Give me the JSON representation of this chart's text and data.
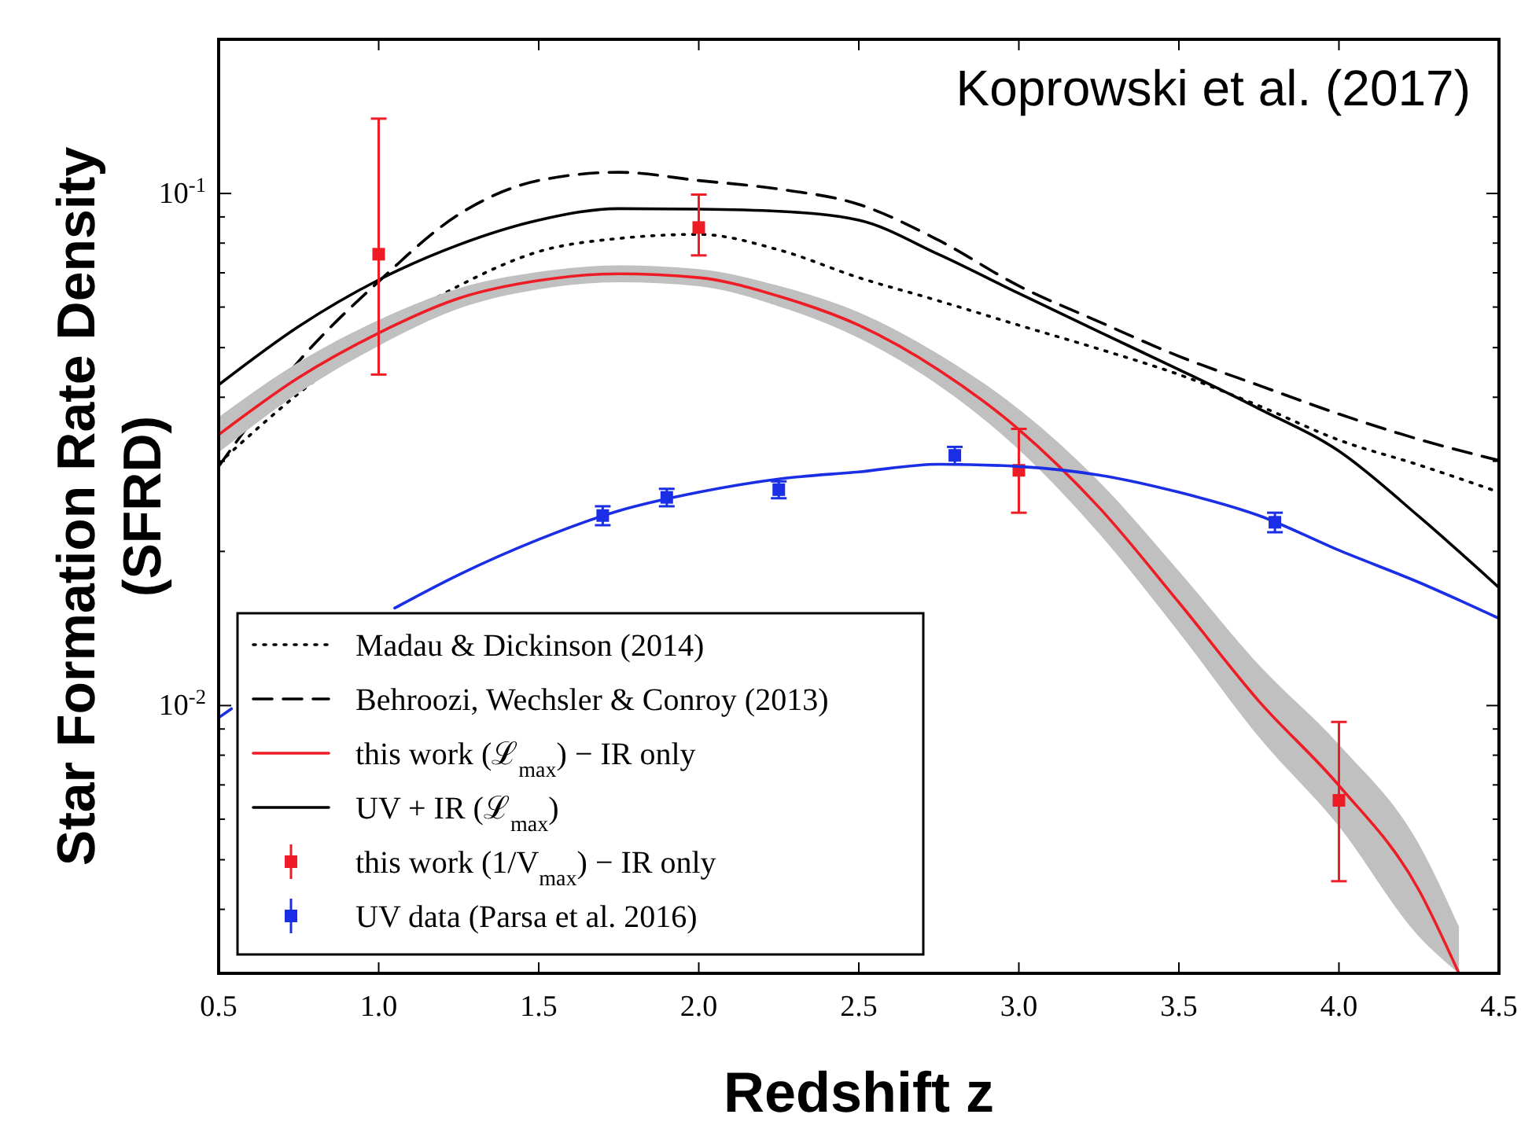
{
  "chart_data": {
    "type": "line",
    "xlabel": "Redshift z",
    "ylabel": "Star Formation Rate Density\n(SFRD)",
    "annotations": [
      "Koprowski et al. (2017)"
    ],
    "log": "y",
    "legend": "bottom left",
    "grid": false,
    "xlim": [
      0.5,
      4.5
    ],
    "xticks": [
      {
        "value": 0.5,
        "label": "0.5"
      },
      {
        "value": 1,
        "label": "1.0"
      },
      {
        "value": 1.5,
        "label": "1.5"
      },
      {
        "value": 2,
        "label": "2.0"
      },
      {
        "value": 2.5,
        "label": "2.5"
      },
      {
        "value": 3,
        "label": "3.0"
      },
      {
        "value": 3.5,
        "label": "3.5"
      },
      {
        "value": 4,
        "label": "4.0"
      },
      {
        "value": 4.5,
        "label": "4.5"
      }
    ],
    "ylim": [
      0.003,
      0.2
    ],
    "yticks": [
      {
        "value": 0.003,
        "label": null
      },
      {
        "value": 0.004,
        "label": null
      },
      {
        "value": 0.005,
        "label": null
      },
      {
        "value": 0.006,
        "label": null
      },
      {
        "value": 0.007,
        "label": null
      },
      {
        "value": 0.008,
        "label": null
      },
      {
        "value": 0.009,
        "label": null
      },
      {
        "value": 0.01,
        "label": "10$^{-2}$"
      },
      {
        "value": 0.02,
        "label": null
      },
      {
        "value": 0.03,
        "label": null
      },
      {
        "value": 0.04,
        "label": null
      },
      {
        "value": 0.05,
        "label": null
      },
      {
        "value": 0.06,
        "label": null
      },
      {
        "value": 0.07,
        "label": null
      },
      {
        "value": 0.08,
        "label": null
      },
      {
        "value": 0.09,
        "label": null
      },
      {
        "value": 0.1,
        "label": "10$^{-1}$"
      },
      {
        "value": 0.2,
        "label": null
      }
    ],
    "series": [
      {
        "name": "Madau & Dickinson (2014)",
        "type": "line",
        "line_style": "dotted",
        "color": "#000000",
        "x": [
          0.5,
          0.75,
          1.25,
          1.5,
          1.75,
          2.0,
          2.25,
          2.5,
          2.75,
          3.0,
          3.25,
          3.5,
          3.75,
          4.0,
          4.25,
          4.5
        ],
        "values": [
          0.0297,
          0.0407,
          0.066,
          0.077,
          0.0817,
          0.0832,
          0.0776,
          0.0685,
          0.0617,
          0.0553,
          0.0497,
          0.0443,
          0.0385,
          0.033,
          0.0295,
          0.0261
        ]
      },
      {
        "name": "Behroozi, Wechsler & Conroy (2013)",
        "type": "line",
        "line_style": "dashed",
        "color": "#000000",
        "x": [
          0.5,
          0.75,
          1.0,
          1.25,
          1.5,
          1.75,
          2.0,
          2.25,
          2.5,
          2.75,
          3.0,
          3.25,
          3.5,
          3.75,
          4.0,
          4.25,
          4.5
        ],
        "values": [
          0.0293,
          0.047,
          0.0673,
          0.091,
          0.106,
          0.11,
          0.106,
          0.102,
          0.0952,
          0.081,
          0.066,
          0.0562,
          0.0481,
          0.0422,
          0.0371,
          0.0331,
          0.0301
        ]
      },
      {
        "name": "this work (ℒ$_{max}$) − IR only",
        "type": "line",
        "line_style": "solid",
        "color": "#ee1c25",
        "x": [
          0.5,
          0.75,
          1.0,
          1.25,
          1.5,
          1.75,
          2.0,
          2.25,
          2.5,
          2.75,
          3.0,
          3.25,
          3.5,
          3.75,
          4.0,
          4.25,
          4.375
        ],
        "values": [
          0.0338,
          0.0437,
          0.0534,
          0.0624,
          0.0676,
          0.0697,
          0.0685,
          0.063,
          0.0553,
          0.0452,
          0.0346,
          0.0244,
          0.0159,
          0.0102,
          0.00698,
          0.00436,
          0.003
        ],
        "lower": [
          0.0312,
          0.0408,
          0.0504,
          0.0596,
          0.065,
          0.0671,
          0.0659,
          0.0602,
          0.0522,
          0.0422,
          0.0316,
          0.0217,
          0.0139,
          0.00868,
          0.00581,
          0.00354,
          0.003
        ],
        "upper": [
          0.0366,
          0.0468,
          0.0566,
          0.0653,
          0.0703,
          0.0724,
          0.0712,
          0.066,
          0.0586,
          0.0485,
          0.0379,
          0.0274,
          0.0183,
          0.012,
          0.00839,
          0.00536,
          0.0037
        ]
      },
      {
        "name": "UV + IR (ℒ$_{max}$)",
        "type": "line",
        "line_style": "solid",
        "color": "#000000",
        "x": [
          0.5,
          0.75,
          1.0,
          1.25,
          1.5,
          1.75,
          2.0,
          2.25,
          2.5,
          2.75,
          3.0,
          3.25,
          3.5,
          3.75,
          4.0,
          4.25,
          4.5
        ],
        "values": [
          0.0423,
          0.055,
          0.0678,
          0.0794,
          0.0887,
          0.0934,
          0.0932,
          0.0923,
          0.0887,
          0.076,
          0.0638,
          0.0537,
          0.0453,
          0.038,
          0.0314,
          0.0234,
          0.017
        ]
      },
      {
        "name": "this work (1/V$_{max}$) − IR only",
        "type": "scatter",
        "marker": "square",
        "color": "#ee1c25",
        "x": [
          1.0,
          2.0,
          3.0,
          4.0
        ],
        "values": [
          0.0761,
          0.0858,
          0.0288,
          0.00653
        ],
        "errors": [
          [
            0.0443,
            0.14
          ],
          [
            0.0757,
            0.0995
          ],
          [
            0.0238,
            0.0347
          ],
          [
            0.00454,
            0.00929
          ]
        ]
      },
      {
        "name": "UV data (Parsa et al. 2016)",
        "type": "scatter",
        "marker": "square",
        "color": "#1a2ee6",
        "x": [
          1.7,
          1.9,
          2.25,
          2.8,
          3.8
        ],
        "values": [
          0.0235,
          0.0255,
          0.0264,
          0.0308,
          0.0228
        ],
        "errors": [
          [
            0.0225,
            0.0245
          ],
          [
            0.0245,
            0.0265
          ],
          [
            0.0254,
            0.0274
          ],
          [
            0.0296,
            0.032
          ],
          [
            0.0218,
            0.0238
          ]
        ]
      },
      {
        "line_style": "solid",
        "color": "#1a2ee6",
        "x": [
          0.5,
          0.54,
          0.75,
          1.05,
          1.25,
          1.5,
          1.75,
          2.0,
          2.25,
          2.5,
          2.75,
          3.0,
          3.25,
          3.5,
          3.75,
          4.0,
          4.25,
          4.5
        ],
        "values": [
          0.00947,
          0.00986,
          null,
          0.0155,
          0.018,
          0.0211,
          0.024,
          0.0261,
          0.0277,
          0.0286,
          0.0296,
          0.0293,
          0.0282,
          0.0261,
          0.0235,
          0.0201,
          0.0174,
          0.0148
        ]
      }
    ]
  }
}
